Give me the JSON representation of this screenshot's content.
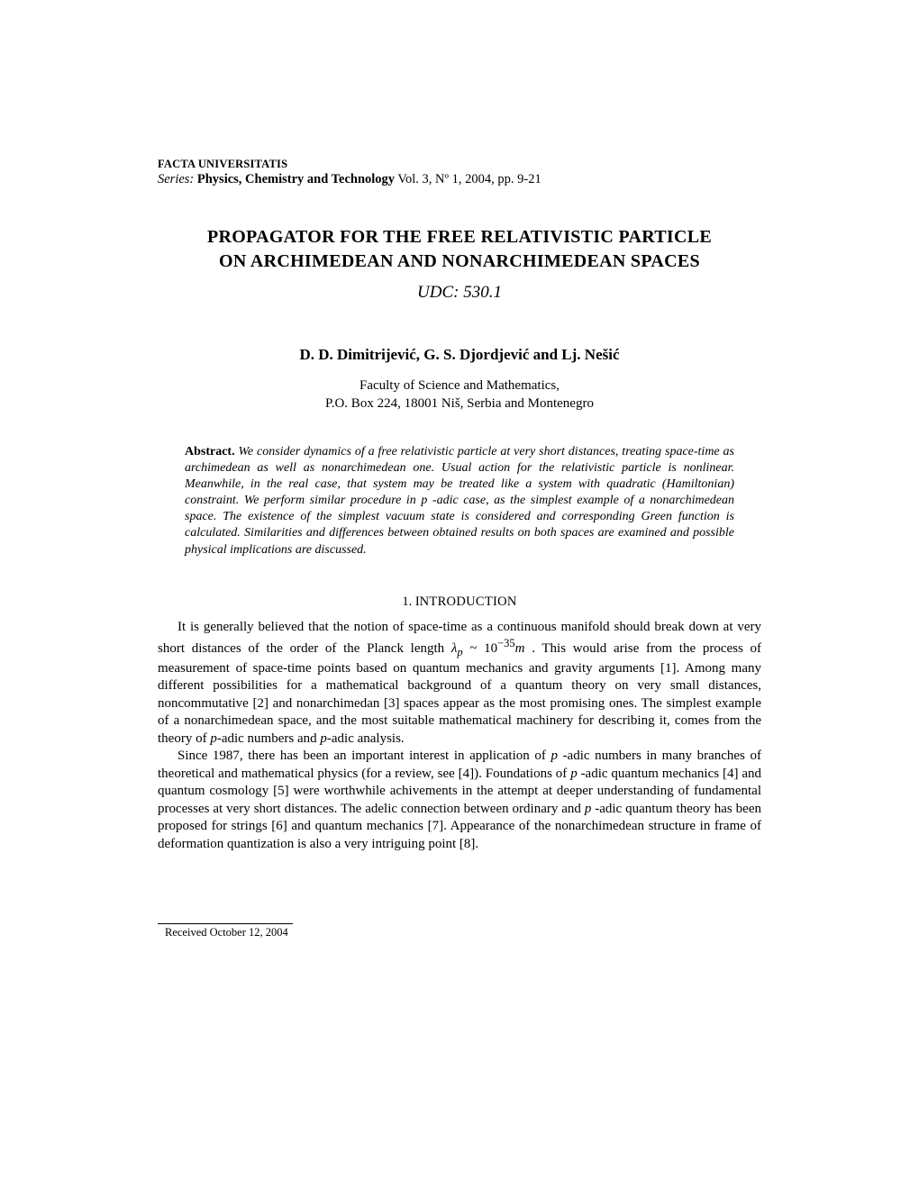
{
  "header": {
    "journal": "FACTA UNIVERSITATIS",
    "series_word": "Series:",
    "series_bold": "Physics, Chemistry and Technology",
    "vol_info": " Vol. 3, Nº 1, 2004, pp. 9-21"
  },
  "title": {
    "line1": "PROPAGATOR FOR THE FREE RELATIVISTIC PARTICLE",
    "line2": "ON ARCHIMEDEAN AND NONARCHIMEDEAN SPACES",
    "udc": "UDC: 530.1"
  },
  "authors": "D. D. Dimitrijević, G. S. Djordjević and Lj. Nešić",
  "affiliation": {
    "line1": "Faculty of Science and Mathematics,",
    "line2": "P.O. Box 224, 18001 Niš, Serbia and Montenegro"
  },
  "abstract": {
    "label": "Abstract.",
    "text": " We consider dynamics of a free relativistic particle at very short distances, treating space-time as archimedean as well as nonarchimedean one. Usual action for the relativistic particle is nonlinear. Meanwhile, in the real case, that system may be treated like a system with quadratic (Hamiltonian) constraint. We perform  similar procedure in  p -adic case, as the simplest example of a nonarchimedean space. The existence of the simplest vacuum state is considered and corresponding Green function is calculated. Similarities and differences between obtained results on both spaces are examined and possible physical implications are discussed."
  },
  "section1": {
    "number": "1. ",
    "heading_first": "I",
    "heading_rest": "NTRODUCTION"
  },
  "body": {
    "p1a": "It is generally believed that the notion of space-time as a continuous manifold should break down at very short distances of the order of the Planck length ",
    "planck_var": "λ",
    "planck_sub": "p",
    "planck_rel": " ~ 10",
    "planck_exp": "−35",
    "planck_unit": "m",
    "p1b": " . This would arise from the process of measurement of space-time points based on quantum mechanics and gravity arguments [1]. Among many different possibilities for a mathematical background of a quantum theory on very small distances, noncommutative [2] and nonarchimedan [3] spaces appear as the most promising ones. The simplest example of a nonarchimedean space, and the most suitable mathematical machinery for describing it, comes from the theory of ",
    "p1_padic1": "p",
    "p1c": "-adic numbers and ",
    "p1_padic2": "p",
    "p1d": "-adic analysis.",
    "p2a": "Since 1987, there has been an important interest in application of  ",
    "p2_p1": "p",
    "p2b": " -adic numbers in many branches of theoretical and mathematical physics (for a review, see [4]). Foundations of  ",
    "p2_p2": "p",
    "p2c": " -adic quantum mechanics [4] and quantum cosmology [5] were worthwhile achivements in the attempt at deeper understanding of fundamental processes at very short distances. The adelic connection between ordinary and  ",
    "p2_p3": "p",
    "p2d": " -adic quantum theory has been proposed for strings [6] and quantum mechanics [7]. Appearance of the nonarchimedean structure in frame of deformation quantization is also a very intriguing point [8]."
  },
  "footnote": "Received October 12, 2004"
}
